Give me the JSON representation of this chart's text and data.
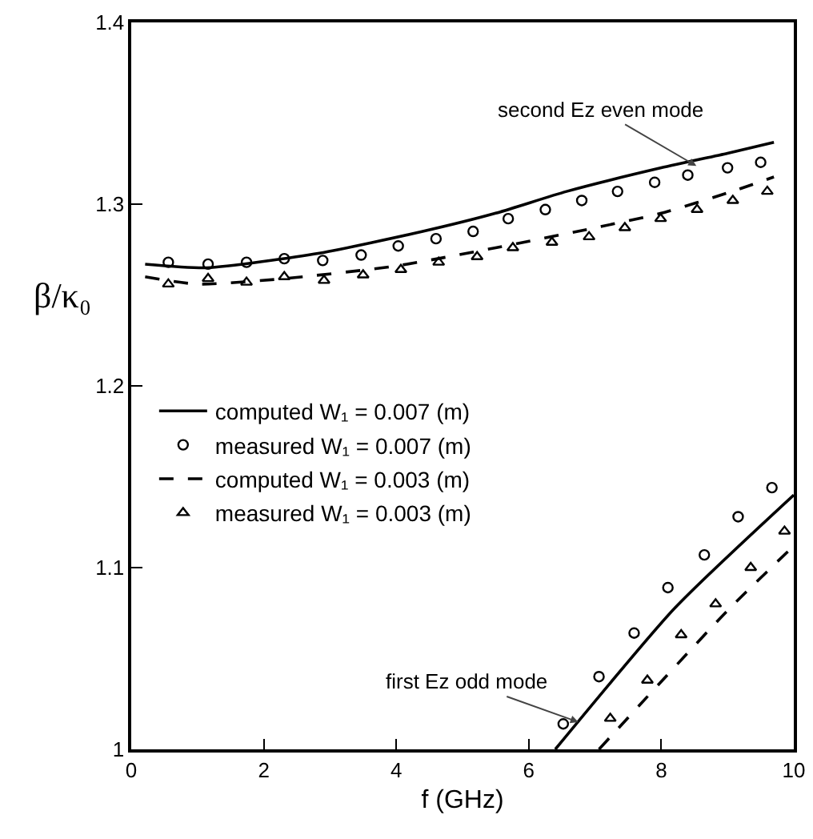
{
  "chart_data": {
    "type": "line",
    "xlabel": "f (GHz)",
    "ylabel": "β/κ₀",
    "xlim": [
      0,
      10
    ],
    "xticks": [
      0,
      2,
      4,
      6,
      8,
      10
    ],
    "ylim": [
      1,
      1.4
    ],
    "yticks": [
      1,
      1.1,
      1.2,
      1.3,
      1.4
    ],
    "grid": false,
    "legend": "left",
    "annotations": [
      {
        "text": "second Ez even mode",
        "x": 8.53,
        "y": 1.321
      },
      {
        "text": "first Ez odd mode",
        "x": 6.75,
        "y": 1.015
      }
    ],
    "series": [
      {
        "name": "computed W₁ = 0.007 (m)",
        "type": "line",
        "line_style": "solid",
        "marker": "none",
        "color": "#000000",
        "x": [
          0.21,
          1.14,
          2.84,
          4.4,
          5.5,
          6.57,
          8.0,
          9.0,
          9.7,
          null,
          6.4,
          8.21,
          10
        ],
        "values": [
          1.267,
          1.265,
          1.273,
          1.285,
          1.295,
          1.307,
          1.32,
          1.328,
          1.334,
          null,
          1.0,
          1.078,
          1.14
        ]
      },
      {
        "name": "measured W₁ = 0.007 (m)",
        "type": "scatter",
        "marker": "circle",
        "color": "#000000",
        "x": [
          0.56,
          1.16,
          1.74,
          2.31,
          2.89,
          3.47,
          4.03,
          4.6,
          5.16,
          5.69,
          6.25,
          6.8,
          7.34,
          7.9,
          8.4,
          9.0,
          9.5,
          null,
          6.52,
          7.06,
          7.59,
          8.1,
          8.65,
          9.16,
          9.67
        ],
        "values": [
          1.268,
          1.267,
          1.268,
          1.27,
          1.269,
          1.272,
          1.277,
          1.281,
          1.285,
          1.292,
          1.297,
          1.302,
          1.307,
          1.312,
          1.316,
          1.32,
          1.323,
          null,
          1.014,
          1.04,
          1.064,
          1.089,
          1.107,
          1.128,
          1.144
        ]
      },
      {
        "name": "computed W₁ = 0.003 (m)",
        "type": "line",
        "line_style": "dashed",
        "marker": "none",
        "color": "#000000",
        "x": [
          0.21,
          1.0,
          2.3,
          4.0,
          5.5,
          7.0,
          8.0,
          9.07,
          9.7,
          null,
          7.06,
          8.99,
          10
        ],
        "values": [
          1.26,
          1.256,
          1.259,
          1.266,
          1.276,
          1.287,
          1.295,
          1.307,
          1.315,
          null,
          1.0,
          1.076,
          1.112
        ]
      },
      {
        "name": "measured W₁ = 0.003 (m)",
        "type": "scatter",
        "marker": "triangle",
        "color": "#000000",
        "x": [
          0.56,
          1.16,
          1.74,
          2.31,
          2.91,
          3.5,
          4.07,
          4.64,
          5.22,
          5.76,
          6.35,
          6.91,
          7.45,
          7.99,
          8.54,
          9.08,
          9.6,
          null,
          7.23,
          7.79,
          8.3,
          8.82,
          9.35,
          9.86
        ],
        "values": [
          1.256,
          1.259,
          1.257,
          1.26,
          1.258,
          1.261,
          1.264,
          1.268,
          1.271,
          1.276,
          1.279,
          1.282,
          1.287,
          1.292,
          1.297,
          1.302,
          1.307,
          null,
          1.017,
          1.038,
          1.063,
          1.08,
          1.1,
          1.12
        ]
      }
    ]
  }
}
